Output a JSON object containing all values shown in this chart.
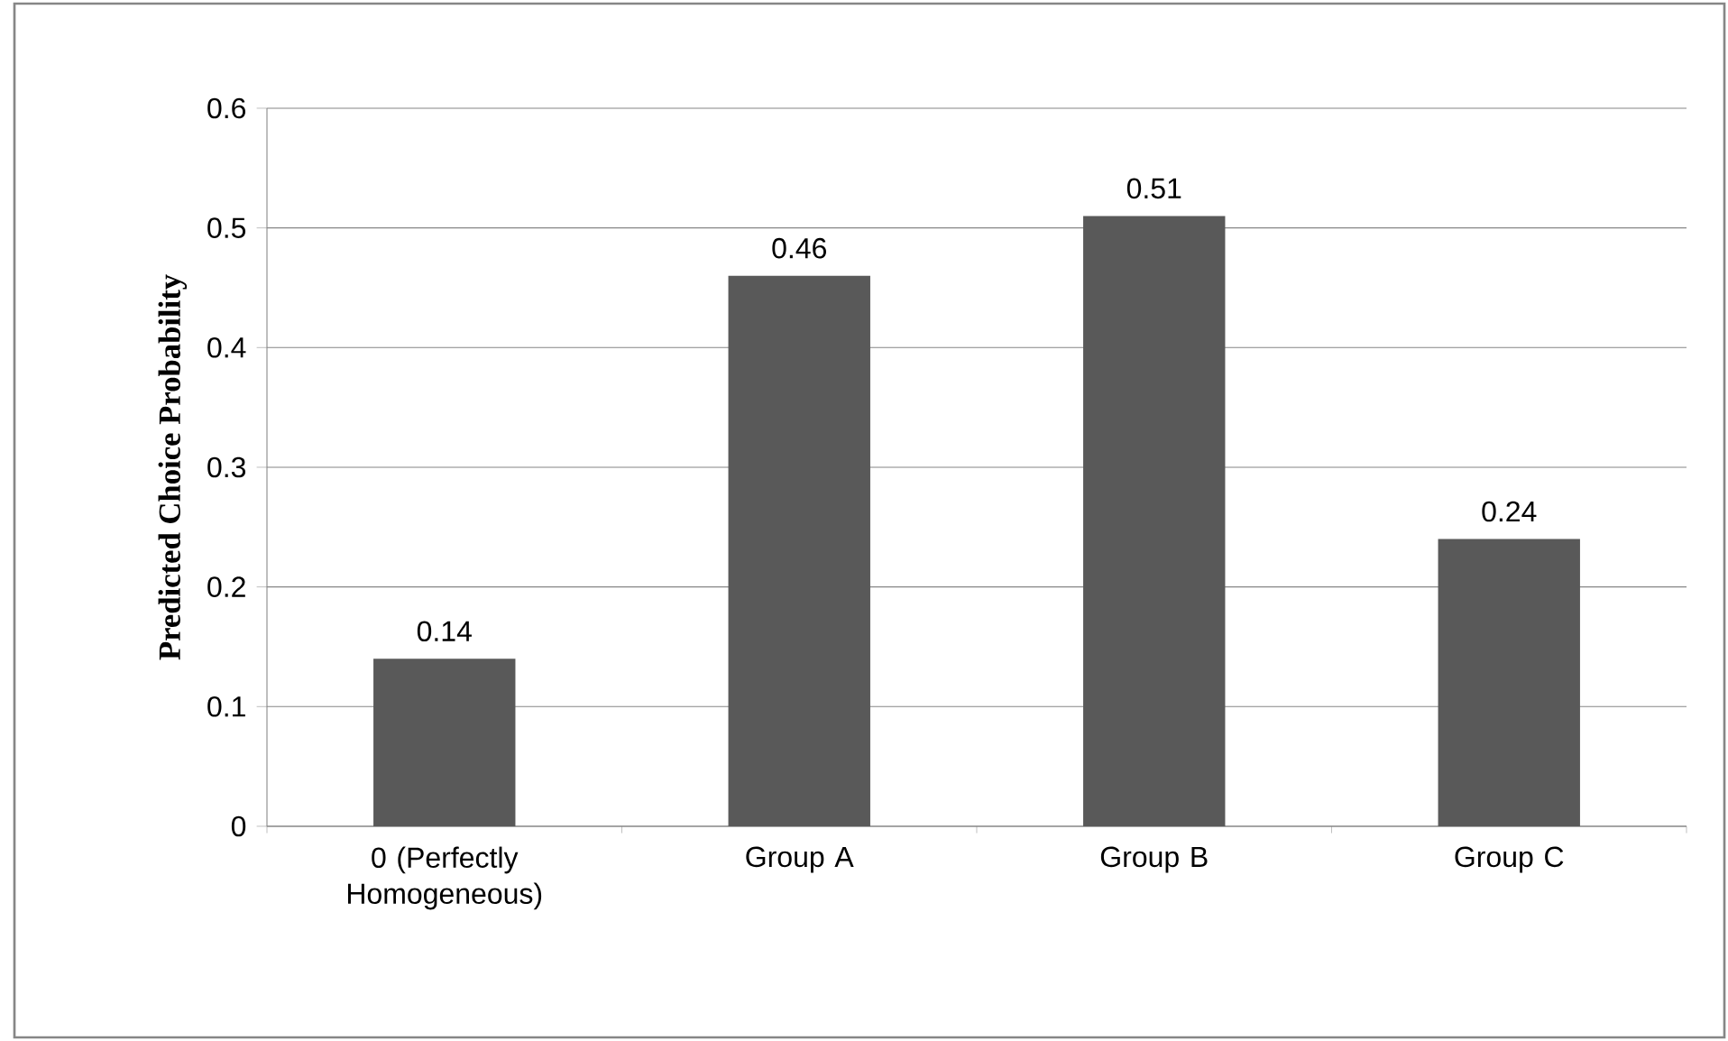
{
  "chart_data": {
    "type": "bar",
    "ylabel": "Predicted Choice Probability",
    "categories": [
      "0 (Perfectly Homogeneous)",
      "Group A",
      "Group B",
      "Group C"
    ],
    "values": [
      0.14,
      0.46,
      0.51,
      0.24
    ],
    "color": "#595959",
    "ylim": [
      0,
      0.6
    ],
    "yticks": [
      0,
      0.1,
      0.2,
      0.3,
      0.4,
      0.5,
      0.6
    ],
    "grid": "y",
    "data_labels": true
  }
}
